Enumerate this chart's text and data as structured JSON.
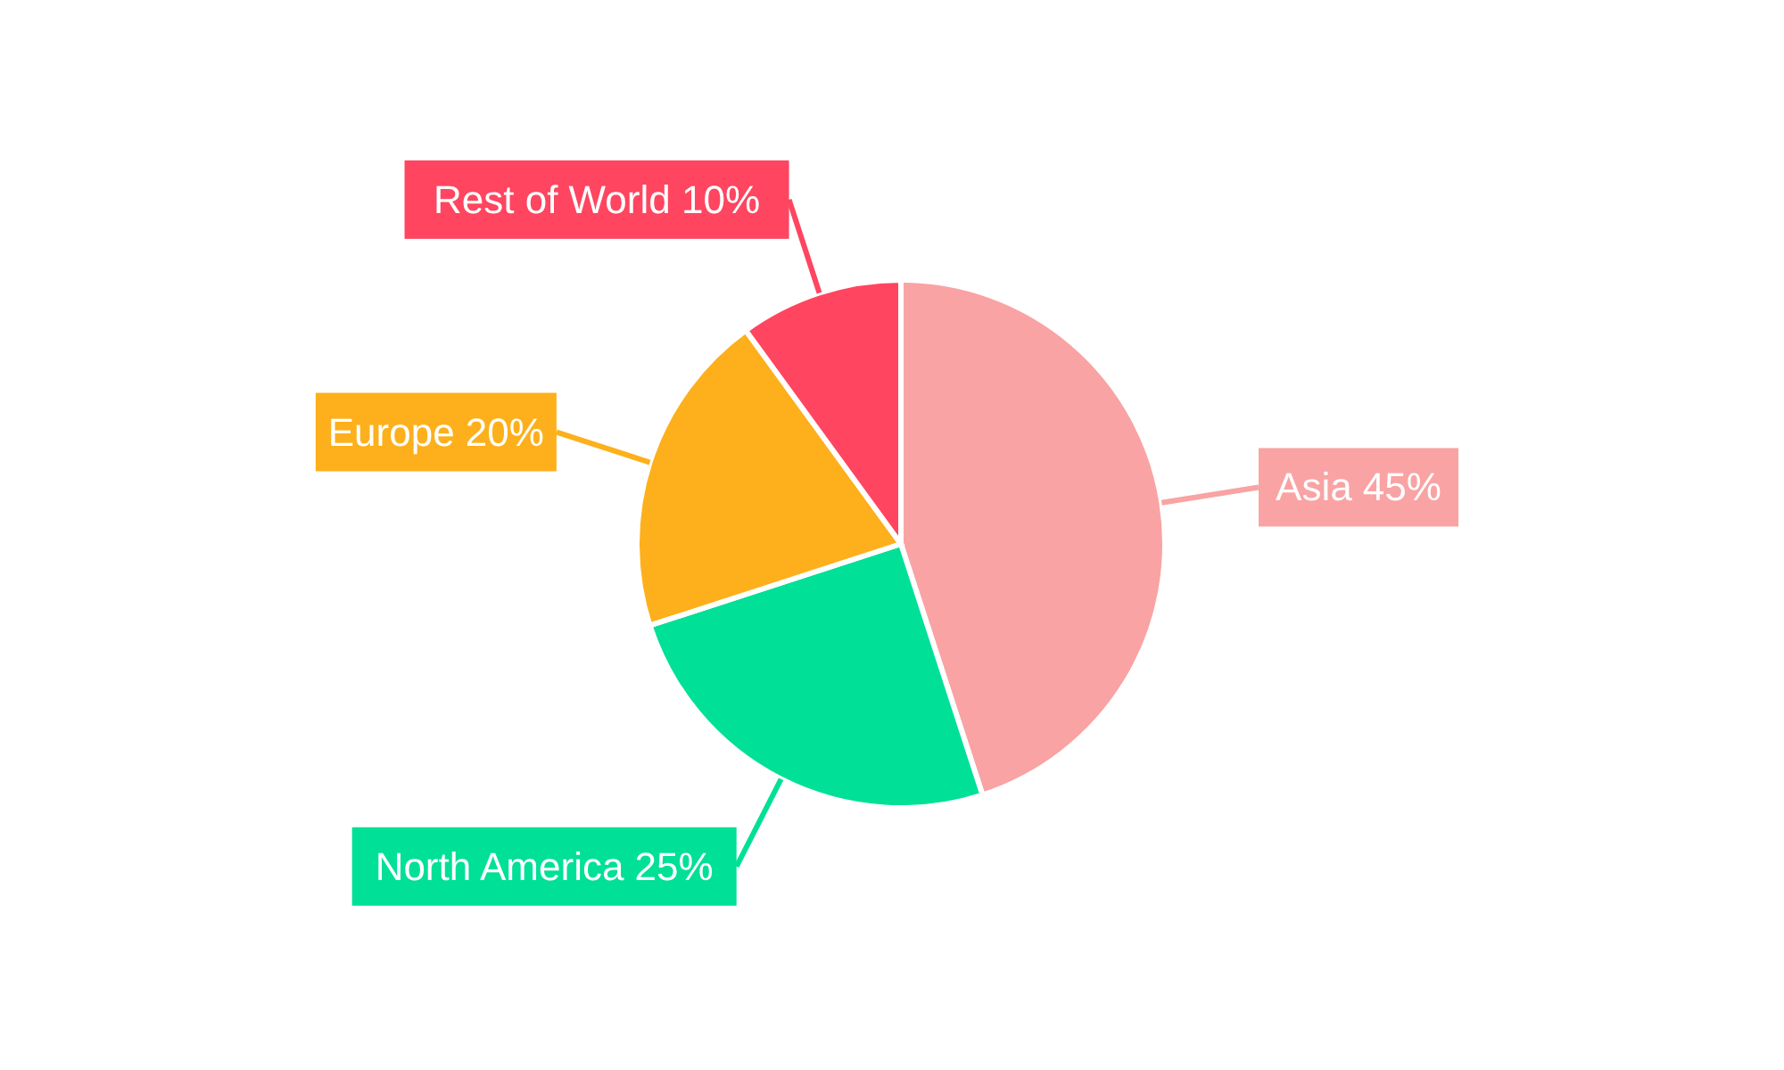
{
  "chart_data": {
    "type": "pie",
    "categories": [
      "Asia",
      "North America",
      "Europe",
      "Rest of World"
    ],
    "values": [
      45,
      25,
      20,
      10
    ],
    "colors": [
      "#f9a3a4",
      "#00e096",
      "#fdb01b",
      "#ff4560"
    ],
    "value_labels": [
      "45%",
      "25%",
      "20%",
      "10%"
    ],
    "legend": false
  }
}
